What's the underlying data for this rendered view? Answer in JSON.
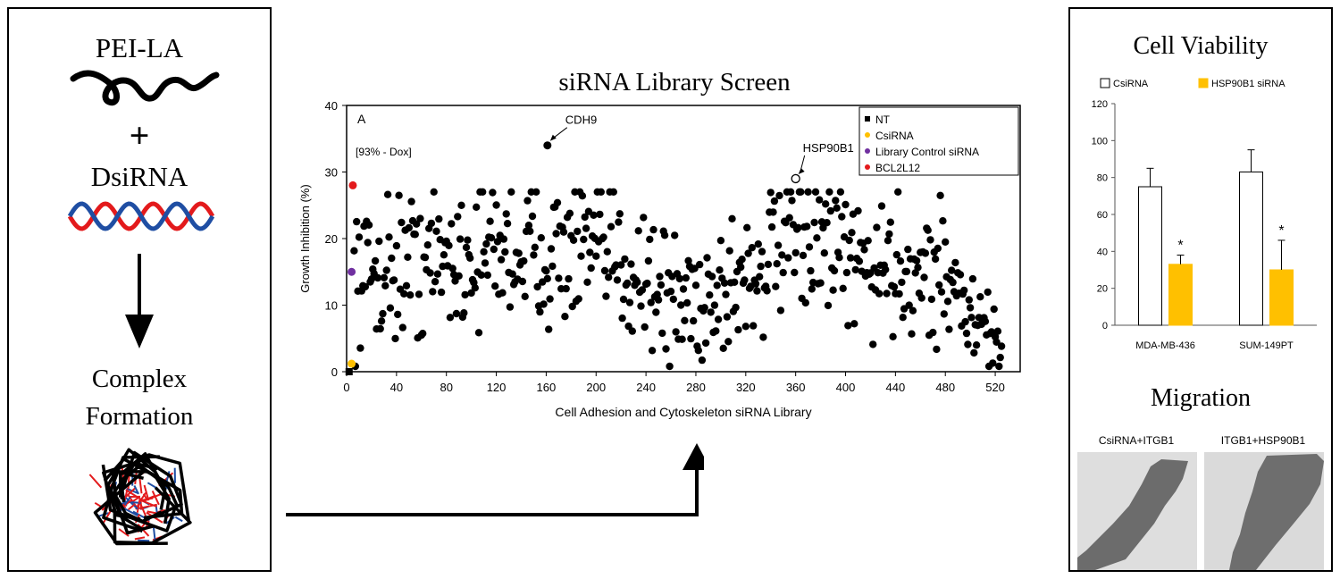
{
  "left_panel": {
    "reagent_top": "PEI-LA",
    "plus": "+",
    "reagent_bottom": "DsiRNA",
    "result_line1": "Complex",
    "result_line2": "Formation"
  },
  "screen": {
    "title": "siRNA Library Screen",
    "panel_letter": "A",
    "condition": "[93% - Dox]",
    "annotations": [
      {
        "label": "CDH9",
        "x": 161,
        "y": 34
      },
      {
        "label": "HSP90B1",
        "x": 360,
        "y": 29
      }
    ]
  },
  "viability": {
    "title": "Cell Viability"
  },
  "migration": {
    "title": "Migration",
    "images": [
      "CsiRNA+ITGB1",
      "ITGB1+HSP90B1"
    ]
  },
  "colors": {
    "red": "#e31a1c",
    "blue": "#1f4ea3",
    "orange": "#ffc000",
    "purple": "#7030a0",
    "black": "#000000"
  },
  "chart_data": [
    {
      "type": "scatter",
      "title": "siRNA Library Screen",
      "xlabel": "Cell Adhesion and Cytoskeleton siRNA Library",
      "ylabel": "Growth Inhibition (%)",
      "xlim": [
        0,
        540
      ],
      "ylim": [
        0,
        40
      ],
      "x_ticks": [
        0,
        40,
        80,
        120,
        160,
        200,
        240,
        280,
        320,
        360,
        400,
        440,
        480,
        520
      ],
      "y_ticks": [
        0,
        10,
        20,
        30,
        40
      ],
      "legend_position": "top-right",
      "legend": [
        {
          "name": "NT",
          "color": "#000000",
          "shape": "square"
        },
        {
          "name": "CsiRNA",
          "color": "#ffc000",
          "shape": "circle"
        },
        {
          "name": "Library Control siRNA",
          "color": "#7030a0",
          "shape": "circle"
        },
        {
          "name": "BCL2L12",
          "color": "#e31a1c",
          "shape": "circle"
        }
      ],
      "control_points": [
        {
          "series": "NT",
          "x": 2,
          "y": 0
        },
        {
          "series": "CsiRNA",
          "x": 4,
          "y": 1.2
        },
        {
          "series": "Library Control siRNA",
          "x": 4,
          "y": 15
        },
        {
          "series": "BCL2L12",
          "x": 5,
          "y": 28
        }
      ],
      "highlighted_points": [
        {
          "name": "CDH9",
          "x": 161,
          "y": 34
        },
        {
          "name": "HSP90B1",
          "x": 360,
          "y": 29,
          "open": true
        }
      ],
      "trend_knots": [
        [
          6,
          14
        ],
        [
          40,
          16
        ],
        [
          80,
          17
        ],
        [
          120,
          18.5
        ],
        [
          160,
          18
        ],
        [
          200,
          18
        ],
        [
          240,
          15
        ],
        [
          260,
          10
        ],
        [
          300,
          12
        ],
        [
          340,
          17
        ],
        [
          370,
          21
        ],
        [
          400,
          16
        ],
        [
          440,
          16
        ],
        [
          480,
          15
        ],
        [
          500,
          8
        ],
        [
          525,
          4
        ]
      ]
    },
    {
      "type": "bar",
      "title": "Cell Viability",
      "categories": [
        "MDA-MB-436",
        "SUM-149PT"
      ],
      "series": [
        {
          "name": "CsiRNA",
          "values": [
            75,
            83
          ],
          "errors": [
            10,
            12
          ]
        },
        {
          "name": "HSP90B1 siRNA",
          "values": [
            33,
            30
          ],
          "errors": [
            5,
            16
          ]
        }
      ],
      "significance": [
        "*",
        "*"
      ],
      "ylim": [
        0,
        120
      ],
      "y_ticks": [
        0,
        20,
        40,
        60,
        80,
        100,
        120
      ],
      "legend_position": "top"
    }
  ]
}
